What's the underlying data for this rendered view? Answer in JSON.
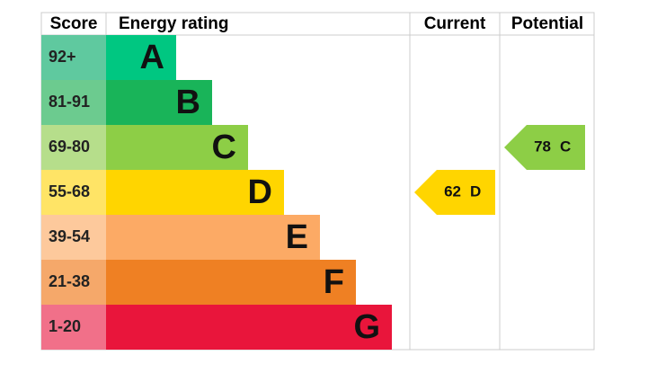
{
  "header": {
    "score": "Score",
    "rating": "Energy rating",
    "current": "Current",
    "potential": "Potential"
  },
  "bands": [
    {
      "range": "92+",
      "letter": "A",
      "color": "#00c781",
      "score_color": "#5fc99f"
    },
    {
      "range": "81-91",
      "letter": "B",
      "color": "#19b459",
      "score_color": "#6ccb8f"
    },
    {
      "range": "69-80",
      "letter": "C",
      "color": "#8dce46",
      "score_color": "#b6de8b"
    },
    {
      "range": "55-68",
      "letter": "D",
      "color": "#ffd500",
      "score_color": "#ffe466"
    },
    {
      "range": "39-54",
      "letter": "E",
      "color": "#fcaa65",
      "score_color": "#fdc99c"
    },
    {
      "range": "21-38",
      "letter": "F",
      "color": "#ef8023",
      "score_color": "#f5a86a"
    },
    {
      "range": "1-20",
      "letter": "G",
      "color": "#e9153b",
      "score_color": "#f17089"
    }
  ],
  "current": {
    "value": 62,
    "letter": "D"
  },
  "potential": {
    "value": 78,
    "letter": "C"
  }
}
